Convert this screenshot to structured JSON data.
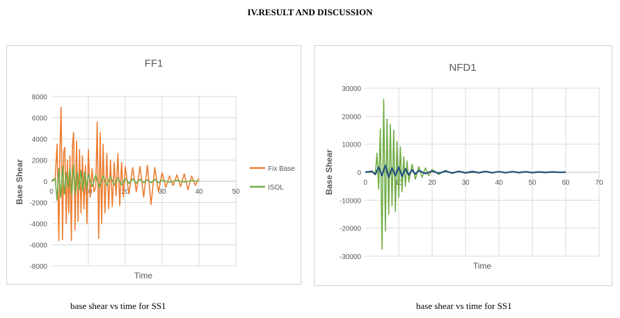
{
  "page": {
    "heading": "IV.RESULT AND DISCUSSION",
    "captions": [
      "base shear vs time for SS1",
      "base shear vs time for SS1"
    ]
  },
  "colors": {
    "fix_base": "#ED7D31",
    "isol": "#70AD47",
    "nfd_dark": "#1F4E79",
    "grid": "#d9d9d9",
    "text": "#595959"
  },
  "chart_data": [
    {
      "type": "line",
      "title": "FF1",
      "xlabel": "Time",
      "ylabel": "Base Shear",
      "xlim": [
        0,
        50
      ],
      "ylim": [
        -8000,
        8000
      ],
      "xticks": [
        0,
        10,
        20,
        30,
        40,
        50
      ],
      "yticks": [
        -8000,
        -6000,
        -4000,
        -2000,
        0,
        2000,
        4000,
        6000,
        8000
      ],
      "legend_position": "right",
      "grid": true,
      "series": [
        {
          "name": "Fix Base",
          "color": "#ED7D31",
          "x": [
            0,
            1,
            1.5,
            2,
            2.3,
            2.6,
            3,
            3.3,
            3.6,
            4,
            4.3,
            4.7,
            5,
            5.4,
            5.7,
            6,
            6.4,
            6.8,
            7.2,
            7.6,
            8,
            8.4,
            8.8,
            9.2,
            9.6,
            10,
            10.5,
            11,
            11.5,
            12,
            12.4,
            12.8,
            13.2,
            13.6,
            14,
            14.5,
            15,
            15.5,
            16,
            16.5,
            17,
            17.5,
            18,
            18.5,
            19,
            19.5,
            20,
            21,
            22,
            23,
            24,
            25,
            26,
            27,
            28,
            29,
            30,
            31,
            32,
            33,
            34,
            35,
            36,
            37,
            38,
            39,
            40
          ],
          "y": [
            0,
            200,
            3500,
            -5600,
            3200,
            7000,
            -5500,
            2800,
            3200,
            -4000,
            2000,
            -3000,
            2400,
            -5600,
            3500,
            4600,
            -4600,
            3800,
            -3800,
            3000,
            -3000,
            2400,
            -2600,
            1500,
            -4000,
            3000,
            -1500,
            1200,
            -1000,
            -600,
            5600,
            -5400,
            4600,
            -4000,
            3500,
            -3000,
            2600,
            -2600,
            2000,
            -2400,
            1800,
            -1400,
            2600,
            -2300,
            1800,
            -1500,
            1400,
            -1200,
            1300,
            -1000,
            1400,
            -1500,
            1500,
            -2200,
            1300,
            -1000,
            800,
            -600,
            500,
            -400,
            600,
            -500,
            700,
            -800,
            500,
            -400,
            300
          ]
        },
        {
          "name": "ISOL",
          "color": "#70AD47",
          "x": [
            0,
            1,
            1.5,
            2,
            2.5,
            3,
            3.5,
            4,
            4.5,
            5,
            5.5,
            6,
            6.5,
            7,
            7.5,
            8,
            8.5,
            9,
            9.5,
            10,
            11,
            12,
            13,
            14,
            15,
            16,
            17,
            18,
            19,
            20,
            21,
            22,
            23,
            24,
            25,
            26,
            27,
            28,
            29,
            30,
            32,
            34,
            36,
            38,
            40
          ],
          "y": [
            0,
            300,
            -1800,
            1200,
            -1500,
            1400,
            -1200,
            800,
            -600,
            1200,
            -1300,
            1500,
            -1200,
            900,
            -800,
            1000,
            -900,
            900,
            -700,
            700,
            -500,
            600,
            -600,
            500,
            -400,
            450,
            -350,
            300,
            -350,
            250,
            -200,
            250,
            -200,
            200,
            -150,
            150,
            -150,
            200,
            -150,
            100,
            -100,
            80,
            -80,
            60,
            0
          ]
        }
      ]
    },
    {
      "type": "line",
      "title": "NFD1",
      "xlabel": "Time",
      "ylabel": "Base Shear",
      "xlim": [
        0,
        70
      ],
      "ylim": [
        -30000,
        30000
      ],
      "xticks": [
        0,
        10,
        20,
        30,
        40,
        50,
        60,
        70
      ],
      "yticks": [
        -30000,
        -20000,
        -10000,
        0,
        10000,
        20000,
        30000
      ],
      "grid": true,
      "series": [
        {
          "color": "#70AD47",
          "x": [
            0,
            2,
            3,
            3.5,
            4,
            4.5,
            5,
            5.5,
            6,
            6.5,
            7,
            7.5,
            8,
            8.5,
            9,
            9.5,
            10,
            10.5,
            11,
            11.5,
            12,
            12.5,
            13,
            14,
            15,
            16,
            17,
            18,
            19,
            20,
            22,
            24,
            26,
            28,
            30,
            35
          ],
          "y": [
            0,
            0,
            -600,
            6800,
            -6000,
            15500,
            -27500,
            26000,
            -21000,
            19000,
            -15000,
            17000,
            -12000,
            15000,
            -14000,
            11000,
            -9000,
            9000,
            -7000,
            5500,
            -5000,
            4000,
            -3500,
            2800,
            -2500,
            2000,
            -1800,
            1500,
            -1200,
            1000,
            -800,
            700,
            -500,
            400,
            -200,
            0
          ]
        },
        {
          "color": "#1F4E79",
          "x": [
            0,
            2,
            3,
            4,
            5,
            6,
            7,
            8,
            9,
            10,
            11,
            12,
            13,
            14,
            15,
            16,
            18,
            20,
            22,
            24,
            26,
            28,
            30,
            32,
            34,
            36,
            38,
            40,
            42,
            44,
            46,
            48,
            50,
            52,
            54,
            56,
            58,
            60
          ],
          "y": [
            0,
            300,
            -800,
            1800,
            -1200,
            2400,
            -1800,
            1500,
            -1200,
            1800,
            -1500,
            1200,
            -1000,
            800,
            -700,
            600,
            -500,
            400,
            -400,
            350,
            -300,
            300,
            -250,
            250,
            -200,
            250,
            -200,
            200,
            -200,
            200,
            -150,
            150,
            -150,
            100,
            -100,
            100,
            -50,
            0
          ]
        }
      ]
    }
  ]
}
